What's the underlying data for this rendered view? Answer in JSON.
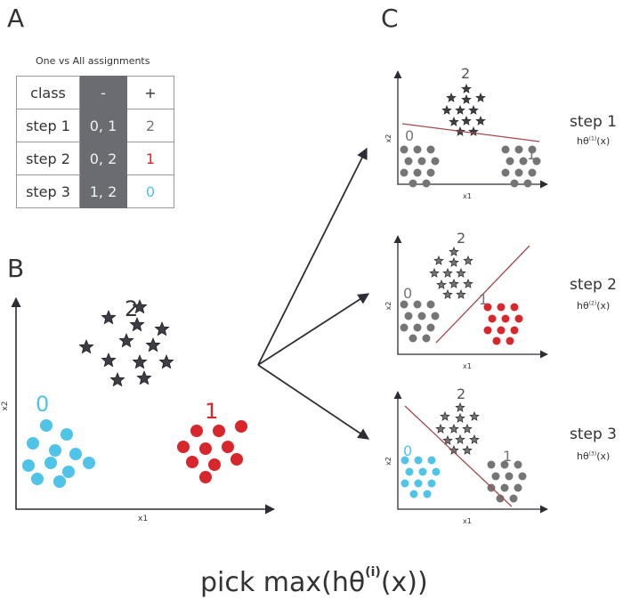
{
  "panels": {
    "a": "A",
    "b": "B",
    "c": "C"
  },
  "table": {
    "title": "One vs All assignments",
    "header": [
      "class",
      "-",
      "+"
    ],
    "rows": [
      {
        "label": "step 1",
        "neg": "0, 1",
        "pos": "2"
      },
      {
        "label": "step 2",
        "neg": "0, 2",
        "pos": "1"
      },
      {
        "label": "step 3",
        "neg": "1, 2",
        "pos": "0"
      }
    ]
  },
  "axes": {
    "x": "x1",
    "y": "x2"
  },
  "classes": {
    "zero": "0",
    "one": "1",
    "two": "2"
  },
  "steps": [
    {
      "label": "step 1",
      "func": "hθ",
      "sup": "(1)",
      "arg": "(x)"
    },
    {
      "label": "step 2",
      "func": "hθ",
      "sup": "(2)",
      "arg": "(x)"
    },
    {
      "label": "step 3",
      "func": "hθ",
      "sup": "(3)",
      "arg": "(x)"
    }
  ],
  "bottom": {
    "pre": "pick max(hθ",
    "sup": "(i)",
    "post": "(x))"
  },
  "colors": {
    "blue": "#4fc3e8",
    "red": "#d7262c",
    "gray": "#757575",
    "star": "#3d3d45",
    "line": "#a04a50"
  }
}
